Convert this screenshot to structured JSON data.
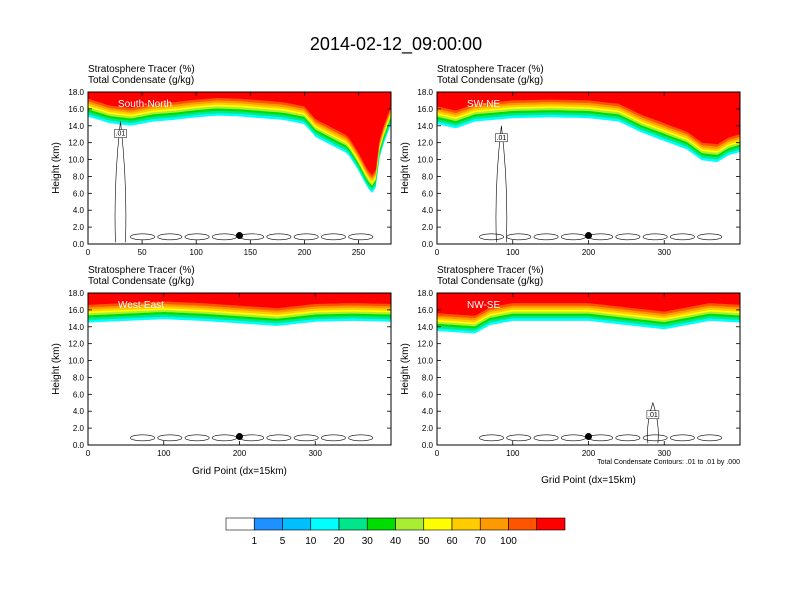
{
  "page": {
    "title": "2014-02-12_09:00:00"
  },
  "chart_data": [
    {
      "type": "heatmap",
      "panel_label": "South-North",
      "subtitle_line1": "Stratosphere Tracer   (%)",
      "subtitle_line2": "Total Condensate   (g/kg)",
      "ylabel": "Height (km)",
      "xlabel": "",
      "xlim": [
        0,
        280
      ],
      "ylim": [
        0,
        18
      ],
      "xticks": [
        "0",
        "50",
        "100",
        "150",
        "200",
        "250"
      ],
      "xtick_values": [
        0,
        50,
        100,
        150,
        200,
        250
      ],
      "yticks": [
        "0.0",
        "2.0",
        "4.0",
        "6.0",
        "8.0",
        "10.0",
        "12.0",
        "14.0",
        "16.0",
        "18.0"
      ],
      "ytick_values": [
        0,
        2,
        4,
        6,
        8,
        10,
        12,
        14,
        16,
        18
      ],
      "tracer_base_km": [
        [
          0,
          15.4
        ],
        [
          20,
          14.6
        ],
        [
          40,
          14.3
        ],
        [
          60,
          14.8
        ],
        [
          80,
          15.0
        ],
        [
          100,
          15.3
        ],
        [
          120,
          15.5
        ],
        [
          140,
          15.4
        ],
        [
          160,
          15.2
        ],
        [
          180,
          15.0
        ],
        [
          200,
          14.5
        ],
        [
          210,
          13.0
        ],
        [
          225,
          12.0
        ],
        [
          240,
          11.0
        ],
        [
          250,
          9.0
        ],
        [
          258,
          7.0
        ],
        [
          265,
          6.0
        ],
        [
          270,
          11.0
        ],
        [
          280,
          14.5
        ]
      ],
      "contour_label": ".01",
      "marker": {
        "x": 140,
        "y": 1.0
      }
    },
    {
      "type": "heatmap",
      "panel_label": "SW-NE",
      "subtitle_line1": "Stratosphere Tracer   (%)",
      "subtitle_line2": "Total Condensate   (g/kg)",
      "ylabel": "Height (km)",
      "xlabel": "",
      "xlim": [
        0,
        400
      ],
      "ylim": [
        0,
        18
      ],
      "xticks": [
        "0",
        "100",
        "200",
        "300"
      ],
      "xtick_values": [
        0,
        100,
        200,
        300
      ],
      "yticks": [
        "0.0",
        "2.0",
        "4.0",
        "6.0",
        "8.0",
        "10.0",
        "12.0",
        "14.0",
        "16.0",
        "18.0"
      ],
      "ytick_values": [
        0,
        2,
        4,
        6,
        8,
        10,
        12,
        14,
        16,
        18
      ],
      "tracer_base_km": [
        [
          0,
          14.5
        ],
        [
          25,
          14.0
        ],
        [
          50,
          14.8
        ],
        [
          100,
          15.2
        ],
        [
          150,
          15.3
        ],
        [
          200,
          15.2
        ],
        [
          240,
          14.8
        ],
        [
          270,
          13.5
        ],
        [
          300,
          12.5
        ],
        [
          330,
          11.5
        ],
        [
          350,
          10.2
        ],
        [
          370,
          10.0
        ],
        [
          385,
          10.8
        ],
        [
          400,
          11.2
        ]
      ],
      "contour_label": ".01",
      "marker": {
        "x": 200,
        "y": 1.0
      }
    },
    {
      "type": "heatmap",
      "panel_label": "West-East",
      "subtitle_line1": "Stratosphere Tracer   (%)",
      "subtitle_line2": "Total Condensate   (g/kg)",
      "ylabel": "Height (km)",
      "xlabel": "Grid Point (dx=15km)",
      "xlim": [
        0,
        400
      ],
      "ylim": [
        0,
        18
      ],
      "xticks": [
        "0",
        "100",
        "200",
        "300"
      ],
      "xtick_values": [
        0,
        100,
        200,
        300
      ],
      "yticks": [
        "0.0",
        "2.0",
        "4.0",
        "6.0",
        "8.0",
        "10.0",
        "12.0",
        "14.0",
        "16.0",
        "18.0"
      ],
      "ytick_values": [
        0,
        2,
        4,
        6,
        8,
        10,
        12,
        14,
        16,
        18
      ],
      "tracer_base_km": [
        [
          0,
          14.8
        ],
        [
          50,
          15.0
        ],
        [
          100,
          15.2
        ],
        [
          150,
          15.0
        ],
        [
          200,
          14.7
        ],
        [
          250,
          14.4
        ],
        [
          300,
          14.9
        ],
        [
          350,
          15.0
        ],
        [
          400,
          14.9
        ]
      ],
      "contour_label": "",
      "marker": {
        "x": 200,
        "y": 1.0
      }
    },
    {
      "type": "heatmap",
      "panel_label": "NW-SE",
      "subtitle_line1": "Stratosphere Tracer   (%)",
      "subtitle_line2": "Total Condensate   (g/kg)",
      "ylabel": "Height (km)",
      "xlabel": "Grid Point (dx=15km)",
      "xlim": [
        0,
        400
      ],
      "ylim": [
        0,
        18
      ],
      "xticks": [
        "0",
        "100",
        "200",
        "300"
      ],
      "xtick_values": [
        0,
        100,
        200,
        300
      ],
      "yticks": [
        "0.0",
        "2.0",
        "4.0",
        "6.0",
        "8.0",
        "10.0",
        "12.0",
        "14.0",
        "16.0",
        "18.0"
      ],
      "ytick_values": [
        0,
        2,
        4,
        6,
        8,
        10,
        12,
        14,
        16,
        18
      ],
      "tracer_base_km": [
        [
          0,
          13.8
        ],
        [
          50,
          13.5
        ],
        [
          70,
          14.5
        ],
        [
          100,
          15.0
        ],
        [
          200,
          15.0
        ],
        [
          250,
          14.5
        ],
        [
          300,
          14.0
        ],
        [
          330,
          14.5
        ],
        [
          360,
          15.0
        ],
        [
          400,
          14.8
        ]
      ],
      "contour_label": ".01",
      "footnote": "Total Condensate Contours: .01 to .01 by .000",
      "marker": {
        "x": 200,
        "y": 1.0
      }
    }
  ],
  "colorbar": {
    "levels": [
      "1",
      "5",
      "10",
      "20",
      "30",
      "40",
      "50",
      "60",
      "70",
      "100"
    ],
    "colors": [
      "#ffffff",
      "#1e90ff",
      "#00bfff",
      "#00ffff",
      "#00e68a",
      "#00dd00",
      "#aaee33",
      "#ffff00",
      "#ffcc00",
      "#ff9900",
      "#ff5500",
      "#ff0000"
    ]
  }
}
